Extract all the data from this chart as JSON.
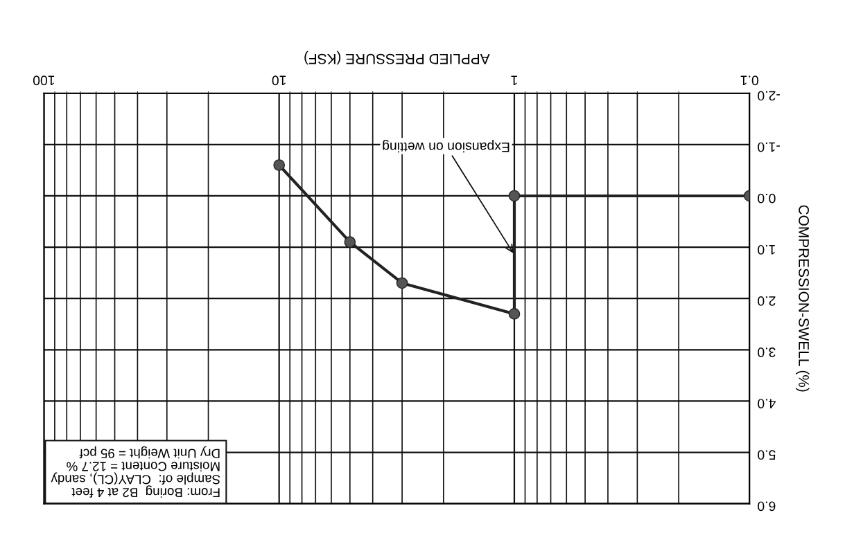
{
  "chart_data": {
    "type": "line",
    "xlabel": "APPLIED PRESSURE (KSF)",
    "ylabel": "COMPRESSION-SWELL (%)",
    "series": [
      {
        "color": "#222222",
        "x": [
          0.1,
          1,
          1,
          3,
          5,
          10
        ],
        "values": [
          0.0,
          0.0,
          2.3,
          1.7,
          0.9,
          -0.6
        ]
      }
    ],
    "log": "x",
    "xlim": [
      100,
      0.1
    ],
    "xticks": [
      0.1,
      1,
      10,
      100
    ],
    "ylim": [
      6.0,
      -2.0
    ],
    "yticks": [
      {
        "value": -2,
        "label": "-2.0"
      },
      {
        "value": -1,
        "label": "-1.0"
      },
      {
        "value": 0,
        "label": "0.0"
      },
      {
        "value": 1,
        "label": "1.0"
      },
      {
        "value": 2,
        "label": "2.0"
      },
      {
        "value": 3,
        "label": "3.0"
      },
      {
        "value": 4,
        "label": "4.0"
      },
      {
        "value": 5,
        "label": "5.0"
      },
      {
        "value": 6,
        "label": "6.0"
      }
    ],
    "grid": true,
    "marker": "circle",
    "line_style": "solid",
    "annotations": [
      {
        "text": "Expansion on wetting",
        "x": 1,
        "y": 1.15
      },
      "From: Boring  B2 at 4 feet\nSample of:  CLAY(CL), sandy\nMoisture Content = 12.7 %\nDry Unit Weight = 95 pcf"
    ]
  }
}
